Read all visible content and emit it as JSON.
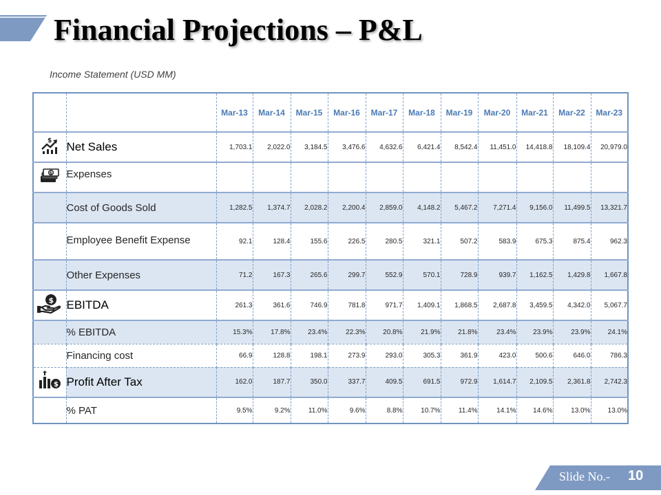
{
  "slide": {
    "title": "Financial Projections – P&L",
    "subtitle": "Income Statement (USD MM)",
    "slide_no_label": "Slide No.-",
    "slide_no": "10",
    "colors": {
      "accent": "#4a7ab4",
      "row_shade": "#dce6f2",
      "border": "#7f9fc4",
      "footer": "#7e99c2"
    }
  },
  "table": {
    "years": [
      "Mar-13",
      "Mar-14",
      "Mar-15",
      "Mar-16",
      "Mar-17",
      "Mar-18",
      "Mar-19",
      "Mar-20",
      "Mar-21",
      "Mar-22",
      "Mar-23"
    ],
    "rows": [
      {
        "label": "Net Sales",
        "icon": "growth-dollar-icon",
        "values": [
          "1,703.1",
          "2,022.0",
          "3,184.5",
          "3,476.6",
          "4,632.6",
          "6,421.4",
          "8,542.4",
          "11,451.0",
          "14,418.8",
          "18,109.4",
          "20,979.0"
        ]
      },
      {
        "label": "Expenses",
        "icon": "money-stack-icon"
      },
      {
        "label": "Cost of Goods Sold",
        "values": [
          "1,282.5",
          "1,374.7",
          "2,028.2",
          "2,200.4",
          "2,859.0",
          "4,148.2",
          "5,467.2",
          "7,271.4",
          "9,156.0",
          "11,499.5",
          "13,321.7"
        ]
      },
      {
        "label": "Employee Benefit Expense",
        "values": [
          "92.1",
          "128.4",
          "155.6",
          "226.5",
          "280.5",
          "321.1",
          "507.2",
          "583.9",
          "675.3",
          "875.4",
          "962.3"
        ]
      },
      {
        "label": "Other Expenses",
        "values": [
          "71.2",
          "167.3",
          "265.6",
          "299.7",
          "552.9",
          "570.1",
          "728.9",
          "939.7",
          "1,162.5",
          "1,429.8",
          "1,667.8"
        ]
      },
      {
        "label": "EBITDA",
        "icon": "hand-coin-icon",
        "values": [
          "261.3",
          "361.6",
          "746.9",
          "781.8",
          "971.7",
          "1,409.1",
          "1,868.5",
          "2,687.8",
          "3,459.5",
          "4,342.0",
          "5,067.7"
        ]
      },
      {
        "label": "% EBITDA",
        "values": [
          "15.3%",
          "17.8%",
          "23.4%",
          "22.3%",
          "20.8%",
          "21.9%",
          "21.8%",
          "23.4%",
          "23.9%",
          "23.9%",
          "24.1%"
        ]
      },
      {
        "label": "Financing cost",
        "values": [
          "66.9",
          "128.8",
          "198.1",
          "273.9",
          "293.0",
          "305.3",
          "361.9",
          "423.0",
          "500.6",
          "646.0",
          "786.3"
        ]
      },
      {
        "label": "Profit After Tax",
        "icon": "bar-chart-coin-icon",
        "values": [
          "162.0",
          "187.7",
          "350.0",
          "337.7",
          "409.5",
          "691.5",
          "972.9",
          "1,614.7",
          "2,109.5",
          "2,361.8",
          "2,742.3"
        ]
      },
      {
        "label": "% PAT",
        "values": [
          "9.5%",
          "9.2%",
          "11.0%",
          "9.6%",
          "8.8%",
          "10.7%",
          "11.4%",
          "14.1%",
          "14.6%",
          "13.0%",
          "13.0%"
        ]
      }
    ]
  }
}
